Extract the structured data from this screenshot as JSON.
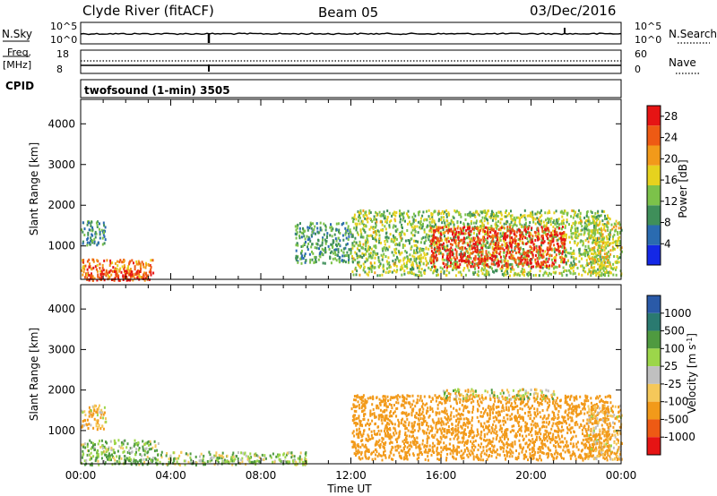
{
  "header": {
    "station": "Clyde River (fitACF)",
    "beam": "Beam 05",
    "date": "03/Dec/2016"
  },
  "params": {
    "nsky_label": "N.Sky",
    "nsky_ticks": [
      "10^5",
      "10^0"
    ],
    "nsearch_label": "N.Search",
    "nsearch_ticks": [
      "10^5",
      "10^0"
    ],
    "freq_label": "Freq.",
    "freq_unit": "[MHz]",
    "freq_ticks": [
      "18",
      "8"
    ],
    "nave_label": "Nave",
    "nave_ticks": [
      "60",
      "0"
    ],
    "cpid_label": "CPID",
    "cpid_value": "twofsound (1-min) 3505"
  },
  "axes": {
    "x_label": "Time UT",
    "x_ticks": [
      "00:00",
      "04:00",
      "08:00",
      "12:00",
      "16:00",
      "20:00",
      "00:00"
    ],
    "x_range_hours": [
      0,
      24
    ],
    "y_label": "Slant Range [km]",
    "y_ticks": [
      1000,
      2000,
      3000,
      4000
    ],
    "y_range_km": [
      180,
      4600
    ]
  },
  "chart_data": [
    {
      "type": "heatmap",
      "panel": "power",
      "xlabel": "Time UT",
      "ylabel": "Slant Range [km]",
      "colorbar_label": "Power [dB]",
      "colorbar_ticks": [
        "28",
        "24",
        "20",
        "16",
        "12",
        "8",
        "4"
      ],
      "colorbar_range": [
        0,
        30
      ],
      "colors": [
        "#1428e6",
        "#2a6bb0",
        "#3f8f5a",
        "#7cc24a",
        "#e6d21e",
        "#f29a1a",
        "#ee5a14",
        "#e61414"
      ],
      "regions": [
        {
          "t": [
            0.0,
            3.2
          ],
          "r": [
            180,
            700
          ],
          "level": 22
        },
        {
          "t": [
            0.3,
            3.2
          ],
          "r": [
            180,
            420
          ],
          "level": 28
        },
        {
          "t": [
            0.0,
            1.1
          ],
          "r": [
            1050,
            1650
          ],
          "level": 9
        },
        {
          "t": [
            9.5,
            12.0
          ],
          "r": [
            600,
            1600
          ],
          "level": 10
        },
        {
          "t": [
            12.0,
            23.5
          ],
          "r": [
            300,
            1900
          ],
          "level": 14
        },
        {
          "t": [
            15.5,
            21.5
          ],
          "r": [
            500,
            1500
          ],
          "level": 27
        },
        {
          "t": [
            22.5,
            24.0
          ],
          "r": [
            300,
            1650
          ],
          "level": 16
        }
      ]
    },
    {
      "type": "heatmap",
      "panel": "velocity",
      "xlabel": "Time UT",
      "ylabel": "Slant Range [km]",
      "colorbar_label": "Velocity [m s^-1]",
      "colorbar_ticks": [
        "1000",
        "500",
        "100",
        "25",
        "-25",
        "-100",
        "-500",
        "-1000"
      ],
      "colorbar_range": [
        -1000,
        1000
      ],
      "colors": [
        "#e61414",
        "#ee5a14",
        "#f29a1a",
        "#f5c85a",
        "#c0c0c0",
        "#9cd64a",
        "#4f9a40",
        "#2a7a70",
        "#2a5aa8",
        "#1428c8"
      ],
      "regions": [
        {
          "t": [
            0.0,
            3.5
          ],
          "r": [
            180,
            800
          ],
          "level": 100
        },
        {
          "t": [
            0.0,
            1.1
          ],
          "r": [
            1050,
            1650
          ],
          "level": -100
        },
        {
          "t": [
            3.5,
            10.0
          ],
          "r": [
            180,
            500
          ],
          "level": 60
        },
        {
          "t": [
            12.0,
            23.5
          ],
          "r": [
            300,
            1900
          ],
          "level": -300
        },
        {
          "t": [
            16.0,
            21.0
          ],
          "r": [
            1800,
            2050
          ],
          "level": 0
        },
        {
          "t": [
            22.5,
            24.0
          ],
          "r": [
            300,
            1650
          ],
          "level": -100
        }
      ]
    }
  ]
}
